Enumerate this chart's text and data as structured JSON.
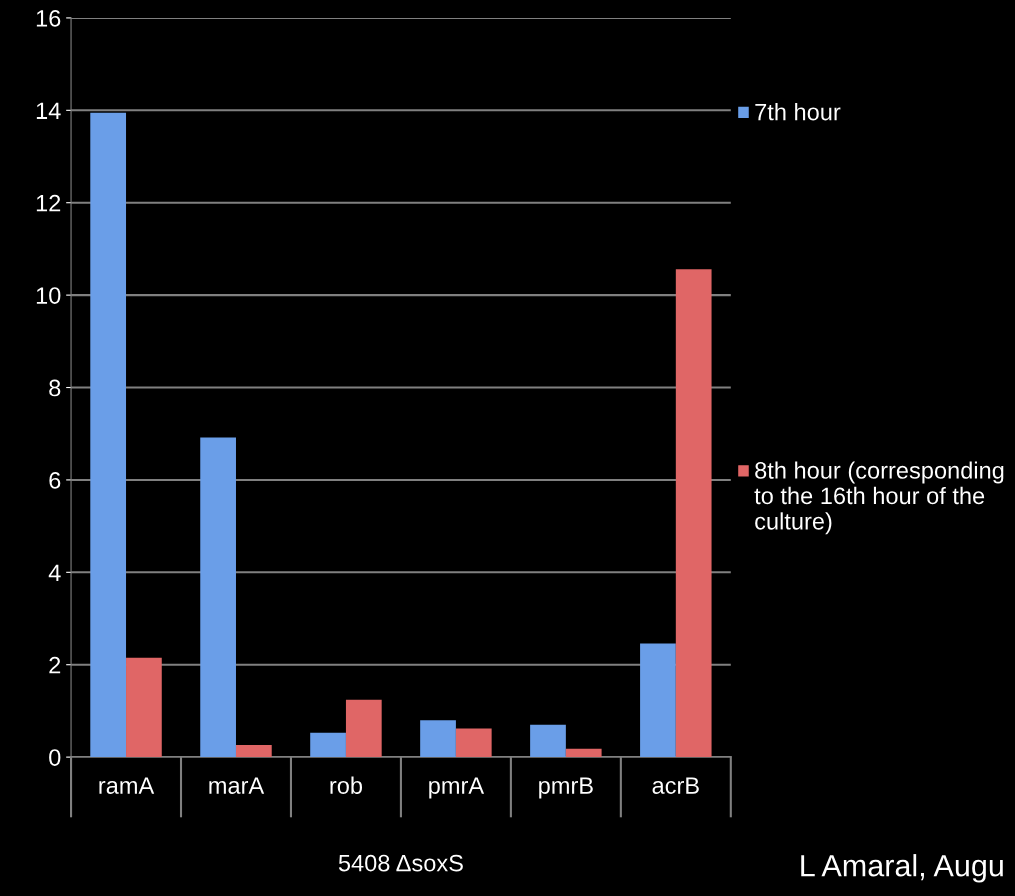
{
  "chart_data": {
    "type": "bar",
    "xlabel": "5408 ΔsoxS",
    "categories": [
      "ramA",
      "marA",
      "rob",
      "pmrA",
      "pmrB",
      "acrB"
    ],
    "series": [
      {
        "name": "7th hour",
        "color": "#6a9ee8",
        "values": [
          13.95,
          6.92,
          0.53,
          0.8,
          0.7,
          2.46
        ]
      },
      {
        "name": "8th hour (corresponding to the 16th hour of the culture)",
        "color": "#e06666",
        "values": [
          2.15,
          0.26,
          1.24,
          0.62,
          0.18,
          10.56
        ]
      }
    ],
    "ylim": [
      0,
      16
    ],
    "yticks": [
      0,
      2,
      4,
      6,
      8,
      10,
      12,
      14,
      16
    ],
    "grid": "y",
    "legend": "right",
    "annotations": [
      "L Amaral, Augu"
    ]
  }
}
